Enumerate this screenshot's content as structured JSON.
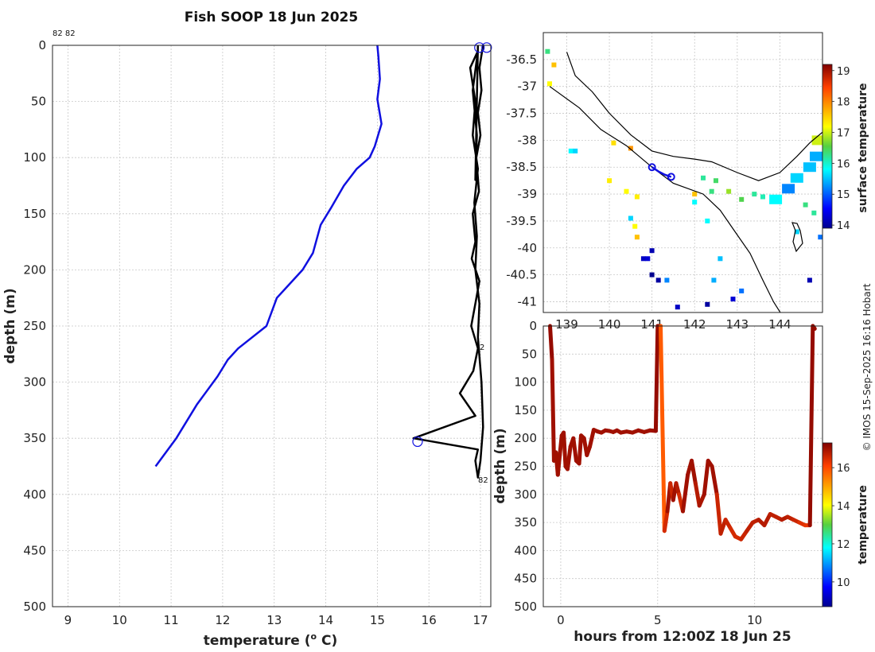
{
  "colors": {
    "profile_line": "#1010e0",
    "trace_line": "#000000",
    "coast_line": "#000000",
    "track_line": "#1010e0",
    "hot_track": "#b31b00"
  },
  "profile_panel": {
    "title": "Fish SOOP 18 Jun 2025",
    "xlabel": "temperature (",
    "xlabel_sup": "o",
    "xlabel_end": " C)",
    "ylabel": "depth (m)",
    "top_tag": "82 82",
    "mid_tag": "2",
    "bottom_tag": "82"
  },
  "map_panel": {
    "colorbar_label": "surface temperature",
    "colorbar_ticks": [
      "14",
      "15",
      "16",
      "17",
      "18",
      "19"
    ],
    "coast_points": [
      [
        139.0,
        -36.36
      ],
      [
        139.2,
        -36.8
      ],
      [
        139.6,
        -37.1
      ],
      [
        140.0,
        -37.5
      ],
      [
        140.5,
        -37.9
      ],
      [
        141.0,
        -38.2
      ],
      [
        141.5,
        -38.3
      ],
      [
        142.0,
        -38.35
      ],
      [
        142.4,
        -38.4
      ],
      [
        143.0,
        -38.6
      ],
      [
        143.5,
        -38.75
      ],
      [
        144.0,
        -38.6
      ],
      [
        144.4,
        -38.3
      ],
      [
        144.7,
        -38.05
      ],
      [
        145.0,
        -37.85
      ]
    ],
    "shelf_points": [
      [
        138.6,
        -37.0
      ],
      [
        139.3,
        -37.4
      ],
      [
        139.8,
        -37.8
      ],
      [
        140.4,
        -38.1
      ],
      [
        141.0,
        -38.5
      ],
      [
        141.5,
        -38.8
      ],
      [
        142.2,
        -39.0
      ],
      [
        142.6,
        -39.3
      ],
      [
        142.95,
        -39.7
      ],
      [
        143.3,
        -40.1
      ],
      [
        143.6,
        -40.6
      ],
      [
        143.85,
        -41.0
      ],
      [
        144.05,
        -41.25
      ]
    ],
    "track_points": [
      [
        141.0,
        -38.5
      ],
      [
        141.15,
        -38.58
      ],
      [
        141.3,
        -38.64
      ],
      [
        141.45,
        -38.68
      ]
    ]
  },
  "series_panel": {
    "xlabel": "hours from 12:00Z 18 Jun 25",
    "ylabel": "depth (m)",
    "colorbar_label": "temperature",
    "colorbar_ticks": [
      "10",
      "12",
      "14",
      "16"
    ]
  },
  "credit": "© IMOS 15-Sep-2025 16:16 Hobart",
  "chart_data": [
    {
      "type": "line",
      "title": "Fish SOOP 18 Jun 2025",
      "xlabel": "temperature (o C)",
      "ylabel": "depth (m)",
      "xlim": [
        8.7,
        17.2
      ],
      "ylim": [
        500,
        0
      ],
      "xticks": [
        9,
        10,
        11,
        12,
        13,
        14,
        15,
        16,
        17
      ],
      "yticks": [
        0,
        50,
        100,
        150,
        200,
        250,
        300,
        350,
        400,
        450,
        500
      ],
      "series": [
        {
          "name": "reference profile",
          "color": "#1010e0",
          "x": [
            15.0,
            15.02,
            15.05,
            15.0,
            15.08,
            14.95,
            14.85,
            14.6,
            14.35,
            14.1,
            13.9,
            13.75,
            13.55,
            13.25,
            13.05,
            12.85,
            12.3,
            12.1,
            11.9,
            11.5,
            11.1,
            10.7
          ],
          "y": [
            0,
            10,
            30,
            48,
            70,
            90,
            100,
            110,
            125,
            145,
            160,
            185,
            200,
            215,
            225,
            250,
            270,
            280,
            295,
            320,
            350,
            375
          ]
        },
        {
          "name": "fish profiles",
          "color": "#000000",
          "x": [
            17.05,
            16.98,
            17.02,
            16.95,
            17.0,
            16.92,
            16.97,
            16.85,
            16.9,
            16.83,
            16.98,
            16.9,
            16.82,
            16.95,
            16.86,
            16.6,
            16.9,
            15.7,
            16.95,
            16.9,
            16.95,
            17.0,
            17.05,
            17.02,
            16.95,
            16.98,
            16.9,
            16.93,
            16.88,
            16.95,
            16.85,
            16.9,
            16.8,
            16.95,
            16.85,
            16.93,
            16.9,
            16.95
          ],
          "y": [
            0,
            20,
            40,
            60,
            80,
            100,
            130,
            150,
            175,
            190,
            210,
            230,
            250,
            270,
            290,
            310,
            330,
            350,
            360,
            370,
            385,
            370,
            340,
            300,
            260,
            230,
            200,
            170,
            140,
            110,
            80,
            50,
            20,
            5,
            40,
            80,
            120,
            0
          ]
        }
      ],
      "markers": [
        {
          "x": 16.98,
          "y": 2
        },
        {
          "x": 17.12,
          "y": 2
        },
        {
          "x": 15.78,
          "y": 353
        }
      ]
    },
    {
      "type": "heatmap",
      "title": "",
      "xlabel": "",
      "ylabel": "",
      "xlim": [
        138.45,
        145.0
      ],
      "ylim": [
        -41.2,
        -36.0
      ],
      "xticks": [
        139,
        140,
        141,
        142,
        143,
        144
      ],
      "yticks": [
        -36.5,
        -37,
        -37.5,
        -38,
        -38.5,
        -39,
        -39.5,
        -40,
        -40.5,
        -41
      ],
      "xtick_labels": [
        "139",
        "140",
        "141",
        "142",
        "143",
        "144"
      ],
      "ytick_labels": [
        "-36.5",
        "-37",
        "-37.5",
        "-38",
        "-38.5",
        "-39",
        "-39.5",
        "-40",
        "-40.5",
        "-41"
      ],
      "colorbar": {
        "label": "surface temperature",
        "min": 13.9,
        "max": 19.2
      },
      "points": [
        {
          "lon": 138.55,
          "lat": -36.35,
          "v": 16.3
        },
        {
          "lon": 138.7,
          "lat": -36.6,
          "v": 17.6
        },
        {
          "lon": 138.6,
          "lat": -36.95,
          "v": 17.2
        },
        {
          "lon": 139.1,
          "lat": -38.2,
          "v": 15.8
        },
        {
          "lon": 139.2,
          "lat": -38.2,
          "v": 15.6
        },
        {
          "lon": 140.1,
          "lat": -38.05,
          "v": 17.4
        },
        {
          "lon": 140.5,
          "lat": -38.15,
          "v": 17.9
        },
        {
          "lon": 140.0,
          "lat": -38.75,
          "v": 17.3
        },
        {
          "lon": 140.4,
          "lat": -38.95,
          "v": 17.2
        },
        {
          "lon": 140.65,
          "lat": -39.05,
          "v": 17.3
        },
        {
          "lon": 140.5,
          "lat": -39.45,
          "v": 15.6
        },
        {
          "lon": 140.6,
          "lat": -39.6,
          "v": 17.2
        },
        {
          "lon": 140.65,
          "lat": -39.8,
          "v": 17.6
        },
        {
          "lon": 140.8,
          "lat": -40.2,
          "v": 14.2
        },
        {
          "lon": 140.9,
          "lat": -40.2,
          "v": 14.3
        },
        {
          "lon": 141.0,
          "lat": -40.05,
          "v": 14.1
        },
        {
          "lon": 141.0,
          "lat": -40.5,
          "v": 13.9
        },
        {
          "lon": 141.15,
          "lat": -40.6,
          "v": 14.0
        },
        {
          "lon": 141.35,
          "lat": -40.6,
          "v": 15.2
        },
        {
          "lon": 141.6,
          "lat": -41.1,
          "v": 14.2
        },
        {
          "lon": 142.3,
          "lat": -41.05,
          "v": 14.0
        },
        {
          "lon": 142.3,
          "lat": -39.5,
          "v": 15.8
        },
        {
          "lon": 142.6,
          "lat": -40.2,
          "v": 15.5
        },
        {
          "lon": 142.45,
          "lat": -40.6,
          "v": 15.4
        },
        {
          "lon": 142.9,
          "lat": -40.95,
          "v": 14.3
        },
        {
          "lon": 143.1,
          "lat": -40.8,
          "v": 15.1
        },
        {
          "lon": 142.2,
          "lat": -38.7,
          "v": 16.2
        },
        {
          "lon": 142.5,
          "lat": -38.75,
          "v": 16.4
        },
        {
          "lon": 142.8,
          "lat": -38.95,
          "v": 16.8
        },
        {
          "lon": 142.4,
          "lat": -38.95,
          "v": 16.3
        },
        {
          "lon": 142.0,
          "lat": -39.0,
          "v": 17.6
        },
        {
          "lon": 142.0,
          "lat": -39.15,
          "v": 15.8
        },
        {
          "lon": 143.1,
          "lat": -39.1,
          "v": 16.5
        },
        {
          "lon": 143.4,
          "lat": -39.0,
          "v": 16.2
        },
        {
          "lon": 143.6,
          "lat": -39.05,
          "v": 16.1
        },
        {
          "lon": 143.9,
          "lat": -39.1,
          "v": 15.8
        },
        {
          "lon": 144.2,
          "lat": -38.9,
          "v": 15.2
        },
        {
          "lon": 144.4,
          "lat": -38.7,
          "v": 15.6
        },
        {
          "lon": 144.7,
          "lat": -38.5,
          "v": 15.5
        },
        {
          "lon": 144.85,
          "lat": -38.3,
          "v": 15.4
        },
        {
          "lon": 144.9,
          "lat": -38.0,
          "v": 17.0
        },
        {
          "lon": 144.6,
          "lat": -39.2,
          "v": 16.3
        },
        {
          "lon": 144.8,
          "lat": -39.35,
          "v": 16.2
        },
        {
          "lon": 144.95,
          "lat": -39.8,
          "v": 15.1
        },
        {
          "lon": 144.4,
          "lat": -39.7,
          "v": 15.6
        },
        {
          "lon": 144.7,
          "lat": -40.6,
          "v": 14.1
        }
      ],
      "track": {
        "lon": [
          141.0,
          141.15,
          141.3,
          141.45
        ],
        "lat": [
          -38.5,
          -38.58,
          -38.64,
          -38.68
        ]
      }
    },
    {
      "type": "scatter",
      "title": "",
      "xlabel": "hours from 12:00Z 18 Jun 25",
      "ylabel": "depth (m)",
      "xlim": [
        -0.9,
        13.5
      ],
      "ylim": [
        500,
        0
      ],
      "xticks": [
        0,
        5,
        10
      ],
      "yticks": [
        0,
        50,
        100,
        150,
        200,
        250,
        300,
        350,
        400,
        450,
        500
      ],
      "colorbar": {
        "label": "temperature",
        "min": 8.7,
        "max": 17.3
      },
      "x": [
        -0.55,
        -0.45,
        -0.35,
        -0.25,
        -0.15,
        -0.05,
        0.05,
        0.15,
        0.25,
        0.35,
        0.5,
        0.65,
        0.8,
        0.95,
        1.05,
        1.2,
        1.35,
        1.5,
        1.7,
        1.9,
        2.1,
        2.3,
        2.5,
        2.7,
        2.9,
        3.1,
        3.4,
        3.7,
        4.0,
        4.3,
        4.6,
        4.9,
        5.0,
        5.15,
        5.35,
        5.5,
        5.65,
        5.8,
        5.95,
        6.1,
        6.3,
        6.55,
        6.75,
        6.95,
        7.15,
        7.4,
        7.6,
        7.8,
        8.05,
        8.25,
        8.5,
        8.75,
        9.0,
        9.3,
        9.6,
        9.9,
        10.2,
        10.5,
        10.8,
        11.1,
        11.4,
        11.7,
        12.0,
        12.3,
        12.6,
        12.85,
        13.0,
        13.1
      ],
      "y": [
        0,
        60,
        240,
        225,
        265,
        230,
        195,
        190,
        250,
        255,
        215,
        200,
        240,
        245,
        195,
        200,
        230,
        215,
        185,
        188,
        190,
        186,
        187,
        189,
        186,
        190,
        188,
        190,
        186,
        189,
        186,
        187,
        0,
        0,
        365,
        330,
        280,
        310,
        280,
        300,
        330,
        265,
        240,
        280,
        320,
        300,
        240,
        250,
        300,
        370,
        345,
        360,
        375,
        380,
        365,
        350,
        345,
        355,
        335,
        340,
        345,
        340,
        345,
        350,
        355,
        355,
        0,
        5
      ],
      "temperature": [
        17.2,
        17.1,
        17.0,
        17.0,
        17.0,
        17.0,
        17.0,
        17.0,
        17.0,
        17.0,
        17.0,
        17.0,
        17.0,
        17.0,
        17.0,
        17.0,
        17.0,
        17.0,
        17.0,
        17.0,
        17.0,
        17.0,
        17.0,
        17.0,
        17.0,
        17.0,
        17.0,
        17.0,
        17.0,
        17.0,
        17.0,
        17.0,
        17.1,
        17.1,
        15.8,
        16.5,
        17.0,
        16.6,
        17.0,
        16.8,
        16.5,
        17.0,
        17.0,
        17.0,
        16.8,
        16.9,
        17.0,
        17.0,
        17.0,
        16.6,
        16.7,
        16.6,
        16.5,
        16.5,
        16.6,
        16.7,
        16.7,
        16.8,
        16.8,
        16.7,
        16.7,
        16.8,
        16.7,
        16.6,
        16.4,
        16.3,
        17.1,
        17.1
      ]
    }
  ]
}
